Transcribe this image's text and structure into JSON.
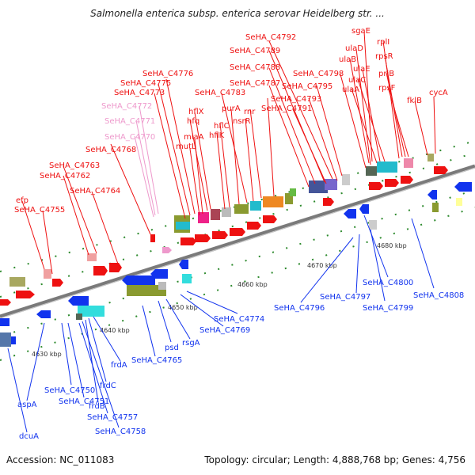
{
  "title": "Salmonella enterica subsp. enterica serovar Heidelberg str. ...",
  "footer": {
    "accession": "Accession: NC_011083",
    "stats": "Topology: circular; Length: 4,888,768 bp; Genes: 4,756"
  },
  "ticks": [
    "4630 kbp",
    "4640 kbp",
    "4650 kbp",
    "4660 kbp",
    "4670 kbp",
    "4680 kbp"
  ],
  "top_labels": [
    "SeHA_C4792",
    "SeHA_C4789",
    "SeHA_C4788",
    "SeHA_C4787",
    "SeHA_C4795",
    "SeHA_C4798",
    "SeHA_C4793",
    "SeHA_C4791",
    "SeHA_C4776",
    "SeHA_C4775",
    "SeHA_C4773",
    "SeHA_C4783",
    "SeHA_C4772",
    "SeHA_C4771",
    "SeHA_C4770",
    "SeHA_C4768",
    "SeHA_C4763",
    "SeHA_C4762",
    "SeHA_C4764",
    "SeHA_C4755",
    "efp",
    "sgaE",
    "ulaD",
    "ulaB",
    "ulaE",
    "ulaC",
    "ulaA",
    "rplI",
    "rpsR",
    "priB",
    "rpsF",
    "fklB",
    "cycA",
    "hflX",
    "hfq",
    "miaA",
    "mutL",
    "purA",
    "hflC",
    "hflK",
    "nsrR",
    "rnr"
  ],
  "bottom_labels": [
    "SeHA_C4800",
    "SeHA_C4808",
    "SeHA_C4797",
    "SeHA_C4799",
    "SeHA_C4796",
    "SeHA_C4774",
    "SeHA_C4769",
    "rsgA",
    "psd",
    "SeHA_C4765",
    "frdA",
    "frdC",
    "frdB",
    "SeHA_C4750",
    "SeHA_C4751",
    "SeHA_C4757",
    "SeHA_C4758",
    "aspA",
    "dcuA"
  ],
  "colors": {
    "forward_gene": "#ee1111",
    "reverse_gene": "#1133ee",
    "backbone": "#888888"
  }
}
